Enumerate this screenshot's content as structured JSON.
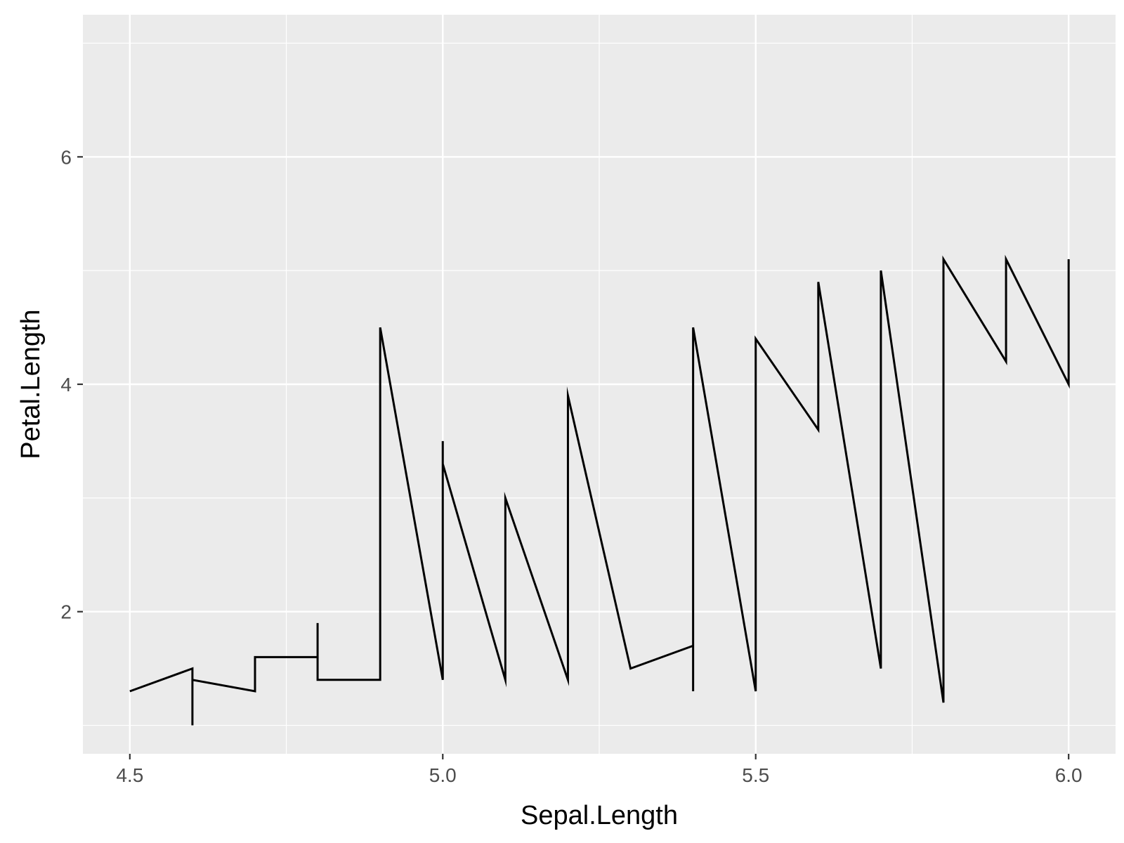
{
  "chart_data": {
    "type": "line",
    "title": "",
    "xlabel": "Sepal.Length",
    "ylabel": "Petal.Length",
    "xlim": [
      4.425,
      6.075
    ],
    "ylim": [
      0.75,
      7.25
    ],
    "x_ticks": [
      4.5,
      5.0,
      5.5,
      6.0
    ],
    "x_tick_labels": [
      "4.5",
      "5.0",
      "5.5",
      "6.0"
    ],
    "x_minor_gridlines": [
      4.75,
      5.25,
      5.75
    ],
    "y_ticks": [
      2,
      4,
      6
    ],
    "y_tick_labels": [
      "2",
      "4",
      "6"
    ],
    "y_minor_gridlines": [
      1,
      3,
      5,
      7
    ],
    "grid": true,
    "legend": "none",
    "colors": {
      "panel": "#ebebeb",
      "grid": "#ffffff",
      "line": "#000000",
      "tick_text": "#4d4d4d"
    },
    "series": [
      {
        "x": [
          4.5,
          4.6,
          4.6,
          4.6,
          4.7,
          4.7,
          4.8,
          4.8,
          4.8,
          4.9,
          4.9,
          5.0,
          5.0,
          5.0,
          5.1,
          5.1,
          5.2,
          5.2,
          5.3,
          5.4,
          5.4,
          5.4,
          5.5,
          5.5,
          5.6,
          5.6,
          5.7,
          5.7,
          5.8,
          5.8,
          5.9,
          5.9,
          6.0,
          6.0
        ],
        "y": [
          1.3,
          1.5,
          1.0,
          1.4,
          1.3,
          1.6,
          1.6,
          1.9,
          1.4,
          1.4,
          4.5,
          1.4,
          3.5,
          3.3,
          1.4,
          3.0,
          1.4,
          3.9,
          1.5,
          1.7,
          1.3,
          4.5,
          1.3,
          4.4,
          3.6,
          4.9,
          1.5,
          5.0,
          1.2,
          5.1,
          4.2,
          5.1,
          4.0,
          5.1
        ]
      }
    ]
  }
}
